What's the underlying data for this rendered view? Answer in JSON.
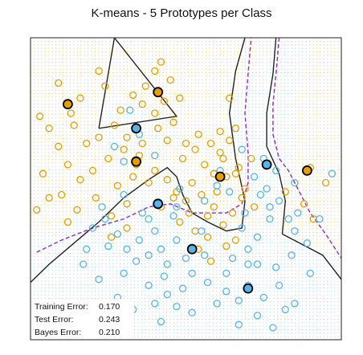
{
  "chart_data": {
    "type": "scatter",
    "title": "K-means - 5 Prototypes per Class",
    "xlabel": "",
    "ylabel": "",
    "xlim": [
      0,
      100
    ],
    "ylim": [
      0,
      100
    ],
    "grid": false,
    "legend": "none",
    "colors": {
      "orange": "#E69F00",
      "blue": "#56B4E9",
      "boundary": "#222222",
      "bayes": "#9932CC",
      "orange_bg": "#E6B54A",
      "blue_bg": "#86C5E8"
    },
    "errors": [
      {
        "label": "Training Error:",
        "value": "0.170"
      },
      {
        "label": "Test Error:",
        "value": "0.243"
      },
      {
        "label": "Bayes Error:",
        "value": "0.210"
      }
    ],
    "series": [
      {
        "class": "orange",
        "points": [
          [
            9,
            85
          ],
          [
            16,
            80
          ],
          [
            13,
            75
          ],
          [
            22,
            89
          ],
          [
            24,
            84
          ],
          [
            3,
            74
          ],
          [
            6,
            70
          ],
          [
            14,
            71
          ],
          [
            18,
            65
          ],
          [
            9,
            64
          ],
          [
            12,
            58
          ],
          [
            4,
            55
          ],
          [
            16,
            53
          ],
          [
            20,
            56
          ],
          [
            25,
            60
          ],
          [
            28,
            51
          ],
          [
            34,
            58
          ],
          [
            36,
            65
          ],
          [
            27,
            71
          ],
          [
            29,
            76
          ],
          [
            33,
            81
          ],
          [
            37,
            84
          ],
          [
            40,
            89
          ],
          [
            42,
            92
          ],
          [
            45,
            86
          ],
          [
            43,
            79
          ],
          [
            36,
            78
          ],
          [
            40,
            75
          ],
          [
            46,
            72
          ],
          [
            48,
            80
          ],
          [
            44,
            66
          ],
          [
            50,
            65
          ],
          [
            54,
            68
          ],
          [
            49,
            60
          ],
          [
            53,
            63
          ],
          [
            58,
            65
          ],
          [
            61,
            69
          ],
          [
            64,
            66
          ],
          [
            66,
            70
          ],
          [
            62,
            60
          ],
          [
            56,
            58
          ],
          [
            59,
            55
          ],
          [
            63,
            54
          ],
          [
            67,
            57
          ],
          [
            60,
            49
          ],
          [
            55,
            48
          ],
          [
            50,
            46
          ],
          [
            52,
            52
          ],
          [
            47,
            49
          ],
          [
            44,
            53
          ],
          [
            40,
            56
          ],
          [
            38,
            52
          ],
          [
            33,
            54
          ],
          [
            35,
            61
          ],
          [
            30,
            63
          ],
          [
            21,
            47
          ],
          [
            15,
            43
          ],
          [
            6,
            47
          ],
          [
            2,
            43
          ],
          [
            12,
            39
          ],
          [
            26,
            41
          ],
          [
            31,
            45
          ],
          [
            48,
            39
          ],
          [
            53,
            36
          ],
          [
            57,
            34
          ],
          [
            62,
            38
          ],
          [
            65,
            42
          ],
          [
            68,
            47
          ],
          [
            72,
            44
          ],
          [
            59,
            44
          ],
          [
            57,
            41
          ],
          [
            54,
            30
          ],
          [
            63,
            31
          ],
          [
            58,
            26
          ],
          [
            66,
            55
          ],
          [
            71,
            60
          ],
          [
            90,
            57
          ],
          [
            95,
            52
          ],
          [
            91,
            40
          ],
          [
            88,
            45
          ],
          [
            82,
            49
          ],
          [
            64,
            80
          ],
          [
            10,
            48
          ],
          [
            22,
            67
          ],
          [
            31,
            67
          ],
          [
            41,
            70
          ],
          [
            46,
            47
          ],
          [
            51,
            42
          ],
          [
            61,
            62
          ],
          [
            31,
            37
          ],
          [
            66,
            33
          ],
          [
            69,
            50
          ],
          [
            42,
            44
          ],
          [
            26,
            34
          ]
        ]
      },
      {
        "class": "blue",
        "points": [
          [
            32,
            76
          ],
          [
            35,
            68
          ],
          [
            27,
            64
          ],
          [
            40,
            61
          ],
          [
            47,
            44
          ],
          [
            30,
            48
          ],
          [
            36,
            42
          ],
          [
            24,
            40
          ],
          [
            28,
            35
          ],
          [
            20,
            37
          ],
          [
            25,
            31
          ],
          [
            35,
            33
          ],
          [
            40,
            36
          ],
          [
            42,
            30
          ],
          [
            38,
            28
          ],
          [
            44,
            25
          ],
          [
            50,
            27
          ],
          [
            47,
            33
          ],
          [
            52,
            22
          ],
          [
            57,
            19
          ],
          [
            49,
            17
          ],
          [
            44,
            15
          ],
          [
            38,
            18
          ],
          [
            30,
            22
          ],
          [
            22,
            20
          ],
          [
            17,
            25
          ],
          [
            34,
            26
          ],
          [
            28,
            14
          ],
          [
            33,
            10
          ],
          [
            40,
            12
          ],
          [
            47,
            11
          ],
          [
            42,
            6
          ],
          [
            52,
            9
          ],
          [
            60,
            12
          ],
          [
            63,
            16
          ],
          [
            67,
            13
          ],
          [
            70,
            18
          ],
          [
            73,
            8
          ],
          [
            78,
            4
          ],
          [
            82,
            10
          ],
          [
            75,
            14
          ],
          [
            70,
            25
          ],
          [
            73,
            34
          ],
          [
            77,
            40
          ],
          [
            80,
            46
          ],
          [
            85,
            52
          ],
          [
            72,
            54
          ],
          [
            75,
            60
          ],
          [
            68,
            63
          ],
          [
            76,
            50
          ],
          [
            85,
            36
          ],
          [
            89,
            32
          ],
          [
            84,
            28
          ],
          [
            90,
            22
          ],
          [
            93,
            40
          ],
          [
            97,
            55
          ],
          [
            79,
            56
          ],
          [
            64,
            49
          ],
          [
            60,
            51
          ],
          [
            56,
            46
          ],
          [
            61,
            56
          ],
          [
            68,
            37
          ],
          [
            73,
            25
          ],
          [
            80,
            18
          ],
          [
            67,
            5
          ],
          [
            85,
            12
          ],
          [
            77,
            44
          ],
          [
            83,
            40
          ],
          [
            65,
            27
          ],
          [
            55,
            36
          ],
          [
            46,
            41
          ],
          [
            30,
            59
          ],
          [
            18,
            30
          ],
          [
            48,
            50
          ],
          [
            38,
            40
          ],
          [
            43,
            21
          ],
          [
            56,
            28
          ],
          [
            63,
            22
          ],
          [
            70,
            30
          ],
          [
            31,
            30
          ],
          [
            23,
            44
          ],
          [
            69,
            42
          ],
          [
            74,
            48
          ],
          [
            79,
            24
          ],
          [
            86,
            42
          ]
        ]
      }
    ],
    "prototypes": [
      {
        "class": "orange",
        "x": 12,
        "y": 78
      },
      {
        "class": "orange",
        "x": 41,
        "y": 82
      },
      {
        "class": "orange",
        "x": 34,
        "y": 59
      },
      {
        "class": "orange",
        "x": 61,
        "y": 54
      },
      {
        "class": "orange",
        "x": 89,
        "y": 56
      },
      {
        "class": "blue",
        "x": 34,
        "y": 70
      },
      {
        "class": "blue",
        "x": 41,
        "y": 45
      },
      {
        "class": "blue",
        "x": 52,
        "y": 30
      },
      {
        "class": "blue",
        "x": 76,
        "y": 58
      },
      {
        "class": "blue",
        "x": 70,
        "y": 17
      }
    ],
    "kmeans_boundary": [
      [
        [
          0,
          19
        ],
        [
          6,
          25
        ],
        [
          14,
          32
        ],
        [
          22,
          39
        ],
        [
          30,
          47
        ],
        [
          38,
          53
        ],
        [
          44,
          57
        ],
        [
          47,
          54
        ],
        [
          49,
          48
        ],
        [
          52,
          42
        ],
        [
          57,
          39
        ],
        [
          63,
          36
        ],
        [
          68,
          37
        ],
        [
          69,
          46
        ],
        [
          66,
          60
        ],
        [
          64,
          75
        ],
        [
          66,
          89
        ],
        [
          69,
          100
        ]
      ],
      [
        [
          79,
          100
        ],
        [
          78,
          88
        ],
        [
          76,
          75
        ],
        [
          76,
          64
        ],
        [
          80,
          55
        ],
        [
          82,
          46
        ],
        [
          81,
          35
        ]
      ],
      [
        [
          81,
          35
        ],
        [
          94,
          28
        ],
        [
          100,
          20
        ]
      ],
      [
        [
          22,
          70
        ],
        [
          27,
          100
        ]
      ],
      [
        [
          22,
          70
        ],
        [
          47,
          74
        ],
        [
          27,
          100
        ]
      ]
    ],
    "bayes_boundary": [
      [
        [
          2,
          29
        ],
        [
          10,
          33
        ],
        [
          20,
          37
        ],
        [
          30,
          40
        ],
        [
          38,
          44
        ],
        [
          45,
          45
        ],
        [
          52,
          42
        ],
        [
          58,
          42
        ],
        [
          63,
          42
        ],
        [
          68,
          45
        ],
        [
          70,
          52
        ],
        [
          70,
          62
        ],
        [
          69,
          75
        ],
        [
          70,
          88
        ],
        [
          71,
          100
        ]
      ],
      [
        [
          80,
          100
        ],
        [
          79,
          88
        ],
        [
          78,
          78
        ],
        [
          78,
          68
        ],
        [
          80,
          60
        ],
        [
          83,
          56
        ],
        [
          86,
          50
        ],
        [
          90,
          42
        ],
        [
          95,
          35
        ],
        [
          100,
          27
        ]
      ]
    ]
  }
}
